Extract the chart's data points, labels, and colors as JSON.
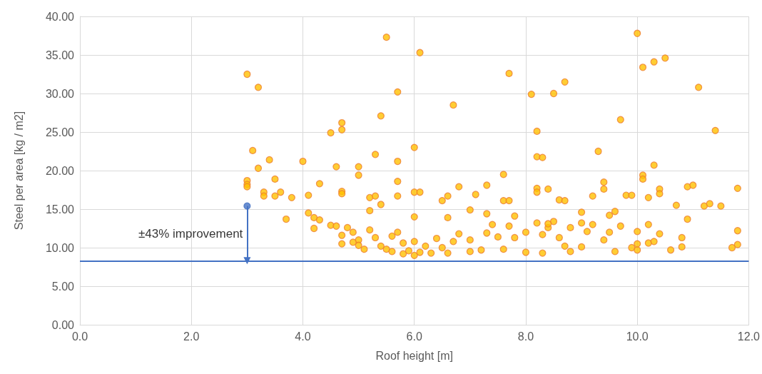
{
  "chart_data": {
    "type": "scatter",
    "xlabel": "Roof height [m]",
    "ylabel": "Steel per area [kg / m2]",
    "marker": "circle",
    "grid": true,
    "xlim": [
      0,
      12
    ],
    "xticks": [
      {
        "value": 0,
        "label": "0.0"
      },
      {
        "value": 2,
        "label": "2.0"
      },
      {
        "value": 4,
        "label": "4.0"
      },
      {
        "value": 6,
        "label": "6.0"
      },
      {
        "value": 8,
        "label": "8.0"
      },
      {
        "value": 10,
        "label": "10.0"
      },
      {
        "value": 12,
        "label": "12.0"
      }
    ],
    "ylim": [
      0,
      40
    ],
    "yticks": [
      {
        "value": 0,
        "label": "0.00"
      },
      {
        "value": 5,
        "label": "5.00"
      },
      {
        "value": 10,
        "label": "10.00"
      },
      {
        "value": 15,
        "label": "15.00"
      },
      {
        "value": 20,
        "label": "20.00"
      },
      {
        "value": 25,
        "label": "25.00"
      },
      {
        "value": 30,
        "label": "30.00"
      },
      {
        "value": 35,
        "label": "35.00"
      },
      {
        "value": 40,
        "label": "40.00"
      }
    ],
    "series": [
      {
        "color": "#ffc000",
        "x": [
          3.0,
          3.2,
          3.1,
          3.2,
          3.4,
          3.0,
          3.0,
          3.0,
          3.5,
          3.3,
          3.3,
          3.5,
          3.6,
          3.8,
          3.7,
          4.0,
          4.1,
          4.3,
          4.1,
          4.2,
          4.3,
          4.2,
          4.5,
          4.6,
          4.7,
          4.7,
          4.7,
          4.7,
          4.5,
          4.6,
          5.0,
          5.0,
          5.2,
          5.3,
          5.4,
          5.2,
          5.3,
          5.4,
          5.5,
          5.7,
          5.7,
          5.7,
          5.7,
          6.0,
          6.1,
          6.0,
          6.1,
          6.0,
          6.5,
          6.6,
          6.6,
          6.7,
          6.8,
          7.0,
          7.1,
          7.3,
          7.3,
          7.6,
          7.6,
          7.7,
          7.7,
          7.8,
          8.1,
          8.2,
          8.2,
          8.3,
          8.2,
          8.2,
          8.4,
          8.5,
          8.7,
          8.6,
          8.7,
          9.0,
          9.2,
          9.3,
          9.4,
          9.4,
          9.5,
          9.6,
          9.7,
          9.8,
          9.9,
          10.0,
          10.1,
          10.3,
          10.5,
          10.1,
          10.1,
          10.2,
          10.3,
          10.4,
          10.4,
          10.7,
          10.9,
          11.0,
          11.1,
          11.2,
          11.3,
          11.5,
          11.4,
          11.8,
          10.9,
          4.7,
          4.7,
          4.8,
          4.9,
          5.0,
          5.0,
          5.1,
          5.2,
          5.3,
          5.4,
          5.5,
          5.6,
          5.6,
          5.7,
          5.8,
          5.8,
          5.9,
          6.0,
          6.0,
          6.1,
          6.2,
          6.3,
          6.4,
          6.5,
          6.6,
          6.7,
          6.8,
          7.0,
          7.0,
          7.2,
          7.3,
          7.4,
          7.5,
          7.6,
          7.7,
          7.8,
          8.0,
          8.0,
          8.2,
          8.3,
          8.3,
          8.4,
          8.5,
          8.6,
          8.7,
          8.8,
          8.8,
          9.0,
          9.1,
          9.2,
          9.4,
          9.5,
          9.6,
          9.7,
          9.9,
          10.0,
          10.0,
          10.0,
          10.2,
          10.3,
          10.4,
          10.6,
          10.8,
          10.8,
          11.7,
          11.8,
          11.8,
          10.2,
          9.0,
          8.4,
          4.9
        ],
        "values": [
          32.5,
          30.8,
          22.6,
          20.3,
          21.4,
          18.7,
          18.2,
          17.9,
          18.9,
          17.2,
          16.7,
          16.7,
          17.2,
          16.5,
          13.7,
          21.2,
          16.8,
          18.3,
          14.5,
          13.9,
          13.6,
          12.5,
          24.9,
          20.5,
          26.2,
          25.3,
          17.3,
          17.0,
          12.9,
          12.8,
          20.5,
          19.4,
          16.5,
          16.7,
          15.6,
          14.8,
          22.1,
          27.1,
          37.3,
          30.2,
          21.2,
          18.6,
          16.7,
          23.0,
          35.3,
          17.2,
          17.2,
          14.0,
          16.1,
          16.7,
          13.9,
          28.5,
          17.9,
          14.9,
          16.9,
          18.1,
          14.4,
          19.5,
          16.1,
          16.1,
          32.6,
          14.1,
          29.9,
          25.1,
          21.8,
          21.7,
          17.7,
          17.2,
          17.6,
          30.0,
          31.5,
          16.2,
          16.1,
          14.6,
          16.7,
          22.5,
          18.5,
          17.6,
          14.2,
          14.7,
          26.6,
          16.8,
          16.8,
          37.8,
          33.4,
          34.1,
          34.6,
          19.4,
          18.9,
          16.5,
          20.7,
          17.6,
          17.0,
          15.5,
          17.9,
          18.1,
          30.8,
          15.4,
          15.7,
          15.4,
          25.2,
          17.7,
          13.7,
          11.6,
          10.5,
          12.6,
          12.0,
          11.0,
          10.3,
          9.8,
          12.3,
          11.3,
          10.2,
          9.8,
          11.5,
          9.5,
          12.0,
          10.6,
          9.2,
          9.6,
          9.0,
          10.8,
          9.4,
          10.2,
          9.3,
          11.2,
          10.0,
          9.3,
          10.8,
          11.8,
          9.5,
          11.0,
          9.7,
          11.9,
          13.0,
          11.4,
          9.8,
          12.8,
          11.3,
          9.4,
          12.0,
          13.2,
          9.3,
          11.7,
          12.6,
          13.4,
          11.3,
          10.2,
          9.5,
          12.6,
          10.1,
          12.1,
          13.0,
          11.0,
          12.0,
          9.5,
          12.8,
          10.0,
          12.1,
          9.7,
          10.5,
          10.6,
          10.8,
          11.8,
          9.7,
          10.1,
          11.3,
          10.0,
          10.4,
          12.2,
          13.0,
          13.2,
          13.1,
          10.7
        ]
      },
      {
        "color": "#4472c4",
        "x": [
          3.0
        ],
        "values": [
          15.4
        ]
      }
    ],
    "ref_lines": [
      {
        "axis": "y",
        "value": 8.3,
        "color": "#4472c4",
        "line_style": "solid"
      }
    ],
    "annotations": [
      "±43% improvement"
    ]
  }
}
